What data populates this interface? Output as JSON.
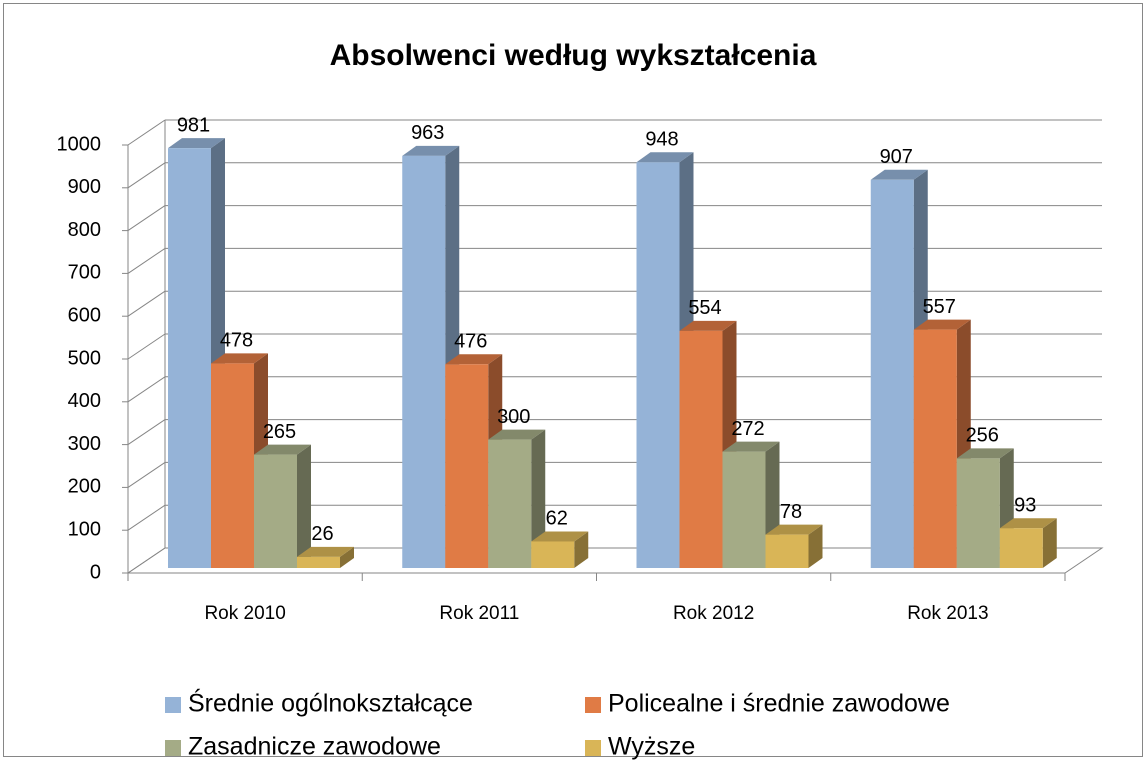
{
  "chart_data": {
    "type": "bar3d",
    "title": "Absolwenci według wykształcenia",
    "categories": [
      "Rok 2010",
      "Rok 2011",
      "Rok 2012",
      "Rok 2013"
    ],
    "series": [
      {
        "name": "Średnie ogólnokształcące",
        "color": "#95b3d7",
        "values": [
          981,
          963,
          948,
          907
        ]
      },
      {
        "name": "Policealne i średnie zawodowe",
        "color": "#e07b45",
        "values": [
          478,
          476,
          554,
          557
        ]
      },
      {
        "name": "Zasadnicze zawodowe",
        "color": "#a4ab86",
        "values": [
          265,
          300,
          272,
          256
        ]
      },
      {
        "name": "Wyższe",
        "color": "#d9b557",
        "values": [
          26,
          62,
          78,
          93
        ]
      }
    ],
    "ylim": [
      0,
      1000
    ],
    "yticks": [
      0,
      100,
      200,
      300,
      400,
      500,
      600,
      700,
      800,
      900,
      1000
    ],
    "grid": true,
    "legend": "bottom"
  }
}
